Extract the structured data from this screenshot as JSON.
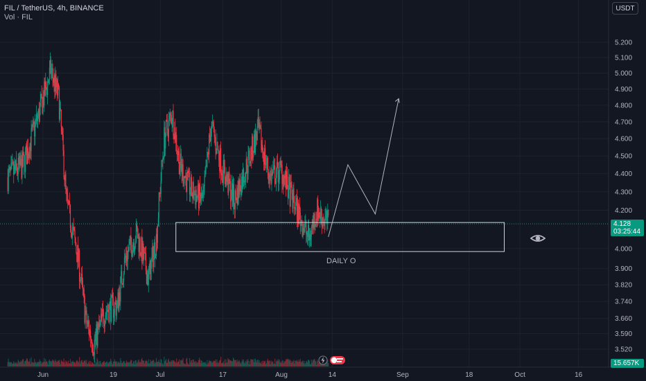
{
  "header": {
    "title": "FIL / TetherUS, 4h, BINANCE",
    "volume_label": "Vol · FIL"
  },
  "currency_button": "USDT",
  "price_tag": {
    "price": "4.128",
    "countdown": "03:25:44"
  },
  "volume_tag": "15.657K",
  "annotation": {
    "label": "DAILY O"
  },
  "colors": {
    "background": "#131722",
    "up": "#089981",
    "down": "#f23645",
    "grid": "#1e222d",
    "axis_text": "#b2b5be"
  },
  "icons": {
    "eye": "eye-icon",
    "event_flash": "lightning-icon",
    "event_flag": "flag-icon"
  },
  "chart_data": {
    "type": "candlestick",
    "title": "FIL / TetherUS, 4h, BINANCE",
    "xlabel": "",
    "ylabel": "",
    "y_ticks": [
      "5.200",
      "5.100",
      "5.000",
      "4.900",
      "4.800",
      "4.700",
      "4.600",
      "4.500",
      "4.400",
      "4.300",
      "4.200",
      "4.000",
      "3.900",
      "3.820",
      "3.740",
      "3.660",
      "3.590",
      "3.520"
    ],
    "x_ticks": [
      "Jun",
      "19",
      "Jul",
      "17",
      "Aug",
      "14",
      "Sep",
      "18",
      "Oct",
      "16"
    ],
    "ylim": [
      3.48,
      5.3
    ],
    "scale": "log",
    "last_price": 4.128,
    "series_outline": [
      {
        "date": "2023-05-23",
        "price": 4.38
      },
      {
        "date": "2023-05-27",
        "price": 4.45
      },
      {
        "date": "2023-05-31",
        "price": 4.75
      },
      {
        "date": "2023-06-02",
        "price": 4.92
      },
      {
        "date": "2023-06-03",
        "price": 5.02
      },
      {
        "date": "2023-06-05",
        "price": 4.85
      },
      {
        "date": "2023-06-07",
        "price": 4.25
      },
      {
        "date": "2023-06-10",
        "price": 3.95
      },
      {
        "date": "2023-06-12",
        "price": 3.65
      },
      {
        "date": "2023-06-14",
        "price": 3.54
      },
      {
        "date": "2023-06-17",
        "price": 3.7
      },
      {
        "date": "2023-06-20",
        "price": 3.72
      },
      {
        "date": "2023-06-22",
        "price": 3.95
      },
      {
        "date": "2023-06-25",
        "price": 4.08
      },
      {
        "date": "2023-06-28",
        "price": 3.85
      },
      {
        "date": "2023-06-30",
        "price": 4.05
      },
      {
        "date": "2023-07-02",
        "price": 4.6
      },
      {
        "date": "2023-07-04",
        "price": 4.75
      },
      {
        "date": "2023-07-06",
        "price": 4.45
      },
      {
        "date": "2023-07-09",
        "price": 4.3
      },
      {
        "date": "2023-07-12",
        "price": 4.25
      },
      {
        "date": "2023-07-14",
        "price": 4.68
      },
      {
        "date": "2023-07-17",
        "price": 4.42
      },
      {
        "date": "2023-07-20",
        "price": 4.25
      },
      {
        "date": "2023-07-24",
        "price": 4.5
      },
      {
        "date": "2023-07-26",
        "price": 4.65
      },
      {
        "date": "2023-07-29",
        "price": 4.38
      },
      {
        "date": "2023-08-01",
        "price": 4.42
      },
      {
        "date": "2023-08-03",
        "price": 4.3
      },
      {
        "date": "2023-08-06",
        "price": 4.15
      },
      {
        "date": "2023-08-08",
        "price": 4.05
      },
      {
        "date": "2023-08-10",
        "price": 4.2
      },
      {
        "date": "2023-08-13",
        "price": 4.128
      }
    ],
    "drawings": {
      "zone": {
        "start": "2023-07-05",
        "end": "2023-09-27",
        "top": 4.135,
        "bottom": 3.985,
        "label": "DAILY O"
      },
      "projection": [
        {
          "date": "2023-08-13",
          "price": 4.06
        },
        {
          "date": "2023-08-18",
          "price": 4.45
        },
        {
          "date": "2023-08-25",
          "price": 4.18
        },
        {
          "date": "2023-08-31",
          "price": 4.84
        }
      ]
    }
  }
}
